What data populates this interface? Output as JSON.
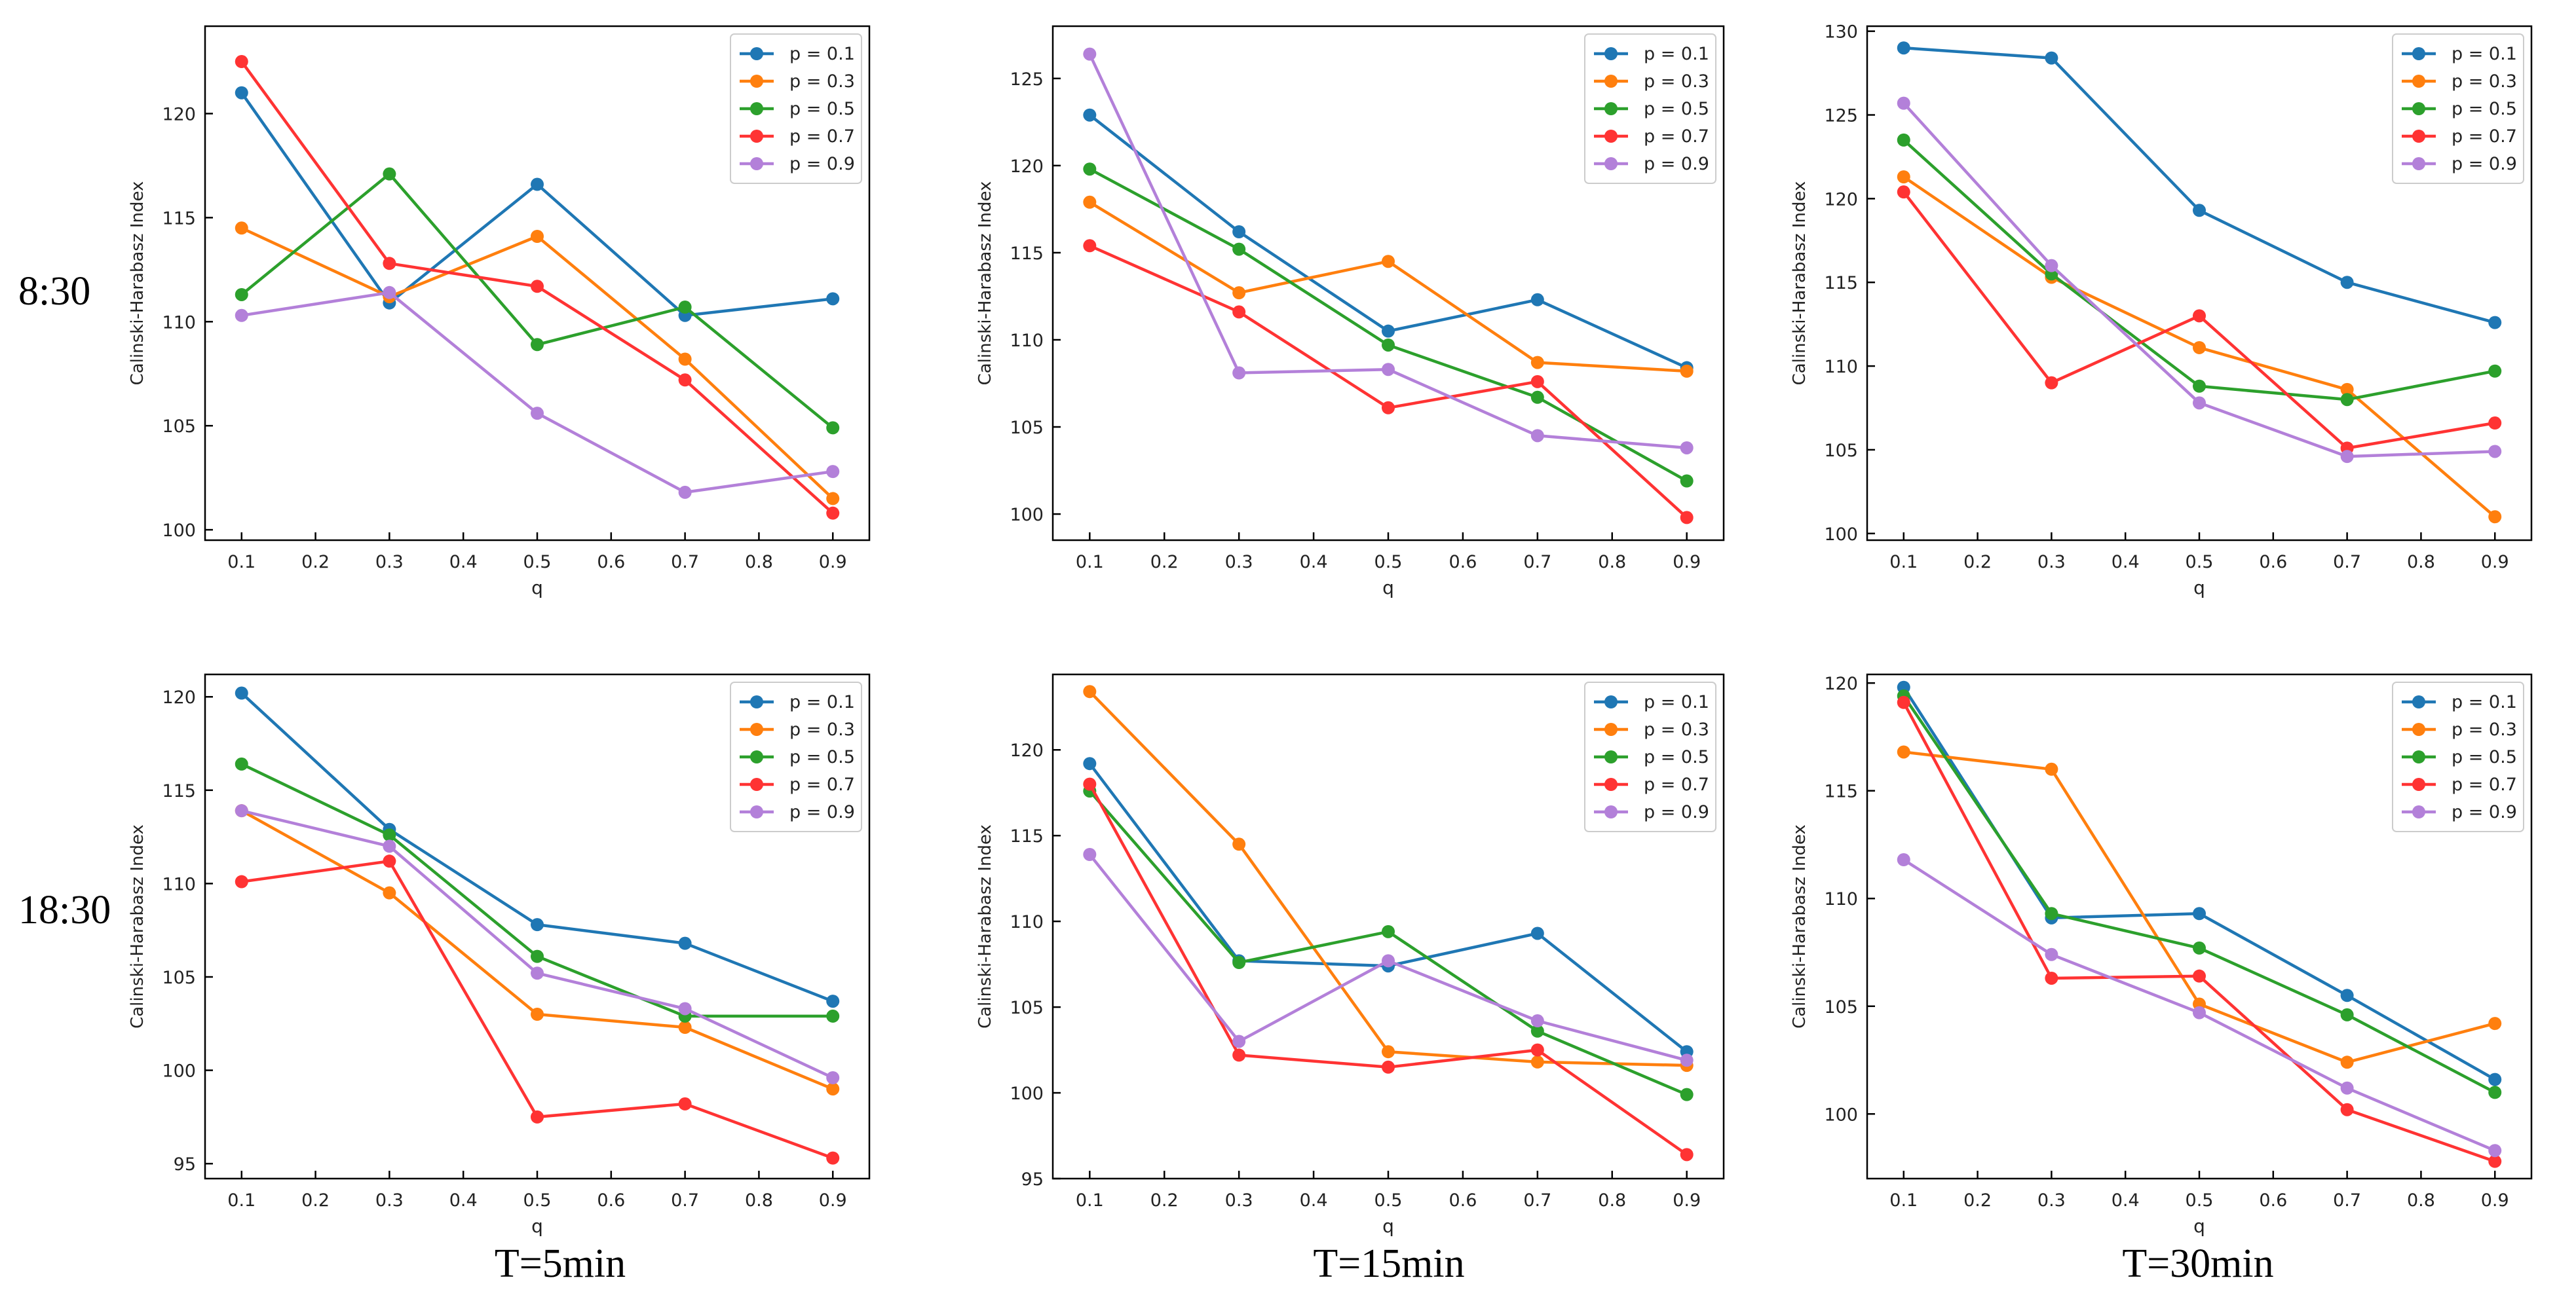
{
  "row_labels": [
    "8:30",
    "18:30"
  ],
  "col_labels": [
    "T=5min",
    "T=15min",
    "T=30min"
  ],
  "colors": [
    "#1f77b4",
    "#ff7f0e",
    "#2ca02c",
    "#ff3333",
    "#b380d9"
  ],
  "chart_data": [
    {
      "type": "line",
      "xlabel": "q",
      "ylabel": "Calinski-Harabasz Index",
      "x": [
        0.1,
        0.3,
        0.5,
        0.7,
        0.9
      ],
      "xticks": [
        0.1,
        0.2,
        0.3,
        0.4,
        0.5,
        0.6,
        0.7,
        0.8,
        0.9
      ],
      "ylim": [
        99.5,
        124.2
      ],
      "yticks": [
        100,
        105,
        110,
        115,
        120
      ],
      "legend_position": "top-right",
      "series": [
        {
          "name": "p = 0.1",
          "values": [
            121.0,
            110.9,
            116.6,
            110.3,
            111.1
          ]
        },
        {
          "name": "p = 0.3",
          "values": [
            114.5,
            111.2,
            114.1,
            108.2,
            101.5
          ]
        },
        {
          "name": "p = 0.5",
          "values": [
            111.3,
            117.1,
            108.9,
            110.7,
            104.9
          ]
        },
        {
          "name": "p = 0.7",
          "values": [
            122.5,
            112.8,
            111.7,
            107.2,
            100.8
          ]
        },
        {
          "name": "p = 0.9",
          "values": [
            110.3,
            111.4,
            105.6,
            101.8,
            102.8
          ]
        }
      ]
    },
    {
      "type": "line",
      "xlabel": "q",
      "ylabel": "Calinski-Harabasz Index",
      "x": [
        0.1,
        0.3,
        0.5,
        0.7,
        0.9
      ],
      "xticks": [
        0.1,
        0.2,
        0.3,
        0.4,
        0.5,
        0.6,
        0.7,
        0.8,
        0.9
      ],
      "ylim": [
        98.5,
        128.0
      ],
      "yticks": [
        100,
        105,
        110,
        115,
        120,
        125
      ],
      "legend_position": "top-right",
      "series": [
        {
          "name": "p = 0.1",
          "values": [
            122.9,
            116.2,
            110.5,
            112.3,
            108.4
          ]
        },
        {
          "name": "p = 0.3",
          "values": [
            117.9,
            112.7,
            114.5,
            108.7,
            108.2
          ]
        },
        {
          "name": "p = 0.5",
          "values": [
            119.8,
            115.2,
            109.7,
            106.7,
            101.9
          ]
        },
        {
          "name": "p = 0.7",
          "values": [
            115.4,
            111.6,
            106.1,
            107.6,
            99.8
          ]
        },
        {
          "name": "p = 0.9",
          "values": [
            126.4,
            108.1,
            108.3,
            104.5,
            103.8
          ]
        }
      ]
    },
    {
      "type": "line",
      "xlabel": "q",
      "ylabel": "Calinski-Harabasz Index",
      "x": [
        0.1,
        0.3,
        0.5,
        0.7,
        0.9
      ],
      "xticks": [
        0.1,
        0.2,
        0.3,
        0.4,
        0.5,
        0.6,
        0.7,
        0.8,
        0.9
      ],
      "ylim": [
        99.6,
        130.3
      ],
      "yticks": [
        100,
        105,
        110,
        115,
        120,
        125,
        130
      ],
      "legend_position": "top-right",
      "series": [
        {
          "name": "p = 0.1",
          "values": [
            129.0,
            128.4,
            119.3,
            115.0,
            112.6
          ]
        },
        {
          "name": "p = 0.3",
          "values": [
            121.3,
            115.3,
            111.1,
            108.6,
            101.0
          ]
        },
        {
          "name": "p = 0.5",
          "values": [
            123.5,
            115.5,
            108.8,
            108.0,
            109.7
          ]
        },
        {
          "name": "p = 0.7",
          "values": [
            120.4,
            109.0,
            113.0,
            105.1,
            106.6
          ]
        },
        {
          "name": "p = 0.9",
          "values": [
            125.7,
            116.0,
            107.8,
            104.6,
            104.9
          ]
        }
      ]
    },
    {
      "type": "line",
      "xlabel": "q",
      "ylabel": "Calinski-Harabasz Index",
      "x": [
        0.1,
        0.3,
        0.5,
        0.7,
        0.9
      ],
      "xticks": [
        0.1,
        0.2,
        0.3,
        0.4,
        0.5,
        0.6,
        0.7,
        0.8,
        0.9
      ],
      "ylim": [
        94.2,
        121.2
      ],
      "yticks": [
        95,
        100,
        105,
        110,
        115,
        120
      ],
      "legend_position": "top-right",
      "series": [
        {
          "name": "p = 0.1",
          "values": [
            120.2,
            112.9,
            107.8,
            106.8,
            103.7
          ]
        },
        {
          "name": "p = 0.3",
          "values": [
            113.9,
            109.5,
            103.0,
            102.3,
            99.0
          ]
        },
        {
          "name": "p = 0.5",
          "values": [
            116.4,
            112.6,
            106.1,
            102.9,
            102.9
          ]
        },
        {
          "name": "p = 0.7",
          "values": [
            110.1,
            111.2,
            97.5,
            98.2,
            95.3
          ]
        },
        {
          "name": "p = 0.9",
          "values": [
            113.9,
            112.0,
            105.2,
            103.3,
            99.6
          ]
        }
      ]
    },
    {
      "type": "line",
      "xlabel": "q",
      "ylabel": "Calinski-Harabasz Index",
      "x": [
        0.1,
        0.3,
        0.5,
        0.7,
        0.9
      ],
      "xticks": [
        0.1,
        0.2,
        0.3,
        0.4,
        0.5,
        0.6,
        0.7,
        0.8,
        0.9
      ],
      "ylim": [
        95.0,
        124.4
      ],
      "yticks": [
        95,
        100,
        105,
        110,
        115,
        120
      ],
      "legend_position": "top-right",
      "series": [
        {
          "name": "p = 0.1",
          "values": [
            119.2,
            107.7,
            107.4,
            109.3,
            102.4
          ]
        },
        {
          "name": "p = 0.3",
          "values": [
            123.4,
            114.5,
            102.4,
            101.8,
            101.6
          ]
        },
        {
          "name": "p = 0.5",
          "values": [
            117.6,
            107.6,
            109.4,
            103.6,
            99.9
          ]
        },
        {
          "name": "p = 0.7",
          "values": [
            118.0,
            102.2,
            101.5,
            102.5,
            96.4
          ]
        },
        {
          "name": "p = 0.9",
          "values": [
            113.9,
            103.0,
            107.7,
            104.2,
            101.9
          ]
        }
      ]
    },
    {
      "type": "line",
      "xlabel": "q",
      "ylabel": "Calinski-Harabasz Index",
      "x": [
        0.1,
        0.3,
        0.5,
        0.7,
        0.9
      ],
      "xticks": [
        0.1,
        0.2,
        0.3,
        0.4,
        0.5,
        0.6,
        0.7,
        0.8,
        0.9
      ],
      "ylim": [
        97.0,
        120.4
      ],
      "yticks": [
        100,
        105,
        110,
        115,
        120
      ],
      "legend_position": "top-right",
      "series": [
        {
          "name": "p = 0.1",
          "values": [
            119.8,
            109.1,
            109.3,
            105.5,
            101.6
          ]
        },
        {
          "name": "p = 0.3",
          "values": [
            116.8,
            116.0,
            105.1,
            102.4,
            104.2
          ]
        },
        {
          "name": "p = 0.5",
          "values": [
            119.4,
            109.3,
            107.7,
            104.6,
            101.0
          ]
        },
        {
          "name": "p = 0.7",
          "values": [
            119.1,
            106.3,
            106.4,
            100.2,
            97.8
          ]
        },
        {
          "name": "p = 0.9",
          "values": [
            111.8,
            107.4,
            104.7,
            101.2,
            98.3
          ]
        }
      ]
    }
  ]
}
